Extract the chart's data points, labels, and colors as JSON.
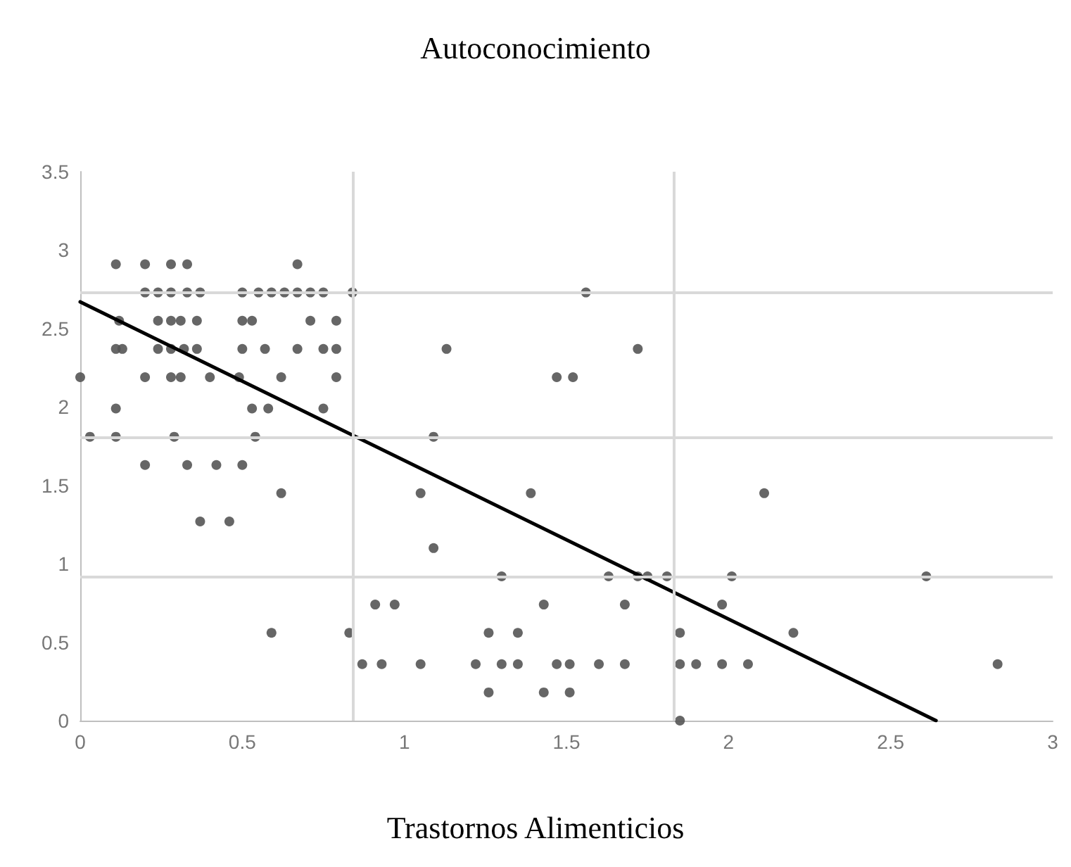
{
  "chart_data": {
    "type": "scatter",
    "title": "Autoconocimiento",
    "xlabel": "Trastornos Alimenticios",
    "xlim": [
      0,
      3
    ],
    "xticks": [
      0,
      0.5,
      1,
      1.5,
      2,
      2.5,
      3
    ],
    "ylim": [
      0,
      3.5
    ],
    "yticks": [
      0,
      0.5,
      1,
      1.5,
      2,
      2.5,
      3,
      3.5
    ],
    "grid": false,
    "marker": "circle",
    "ref_lines": [
      {
        "axis": "x",
        "value": 0.84,
        "color": "#d9d9d9"
      },
      {
        "axis": "x",
        "value": 1.83,
        "color": "#d9d9d9"
      },
      {
        "axis": "y",
        "value": 2.73,
        "color": "#d9d9d9"
      },
      {
        "axis": "y",
        "value": 1.81,
        "color": "#d9d9d9"
      },
      {
        "axis": "y",
        "value": 0.92,
        "color": "#d9d9d9"
      }
    ],
    "series": [
      {
        "color": "#555555",
        "x": [
          0.11,
          0.2,
          0.28,
          0.33,
          0.67,
          0.2,
          0.24,
          0.28,
          0.33,
          0.37,
          0.5,
          0.55,
          0.59,
          0.63,
          0.67,
          0.71,
          0.75,
          0.84,
          1.56,
          0.12,
          0.24,
          0.28,
          0.31,
          0.36,
          0.5,
          0.53,
          0.71,
          0.79,
          0.11,
          0.13,
          0.24,
          0.28,
          0.32,
          0.36,
          0.5,
          0.57,
          0.67,
          0.75,
          0.79,
          1.13,
          1.72,
          0,
          0.2,
          0.28,
          0.31,
          0.4,
          0.49,
          0.62,
          0.79,
          1.47,
          1.52,
          0.11,
          0.53,
          0.58,
          0.75,
          0.03,
          0.11,
          0.29,
          0.54,
          1.09,
          0.2,
          0.33,
          0.42,
          0.5,
          0.62,
          1.05,
          1.39,
          2.11,
          0.37,
          0.46,
          1.09,
          1.3,
          1.63,
          1.72,
          1.75,
          1.81,
          2.01,
          2.61,
          0.91,
          0.97,
          1.43,
          1.68,
          1.98,
          0.59,
          0.83,
          1.26,
          1.35,
          1.85,
          2.2,
          0.87,
          0.93,
          1.05,
          1.22,
          1.3,
          1.35,
          1.47,
          1.51,
          1.6,
          1.68,
          1.85,
          1.9,
          1.98,
          2.06,
          2.83,
          1.26,
          1.43,
          1.51,
          1.85
        ],
        "values": [
          2.91,
          2.91,
          2.91,
          2.91,
          2.91,
          2.73,
          2.73,
          2.73,
          2.73,
          2.73,
          2.73,
          2.73,
          2.73,
          2.73,
          2.73,
          2.73,
          2.73,
          2.73,
          2.73,
          2.55,
          2.55,
          2.55,
          2.55,
          2.55,
          2.55,
          2.55,
          2.55,
          2.55,
          2.37,
          2.37,
          2.37,
          2.37,
          2.37,
          2.37,
          2.37,
          2.37,
          2.37,
          2.37,
          2.37,
          2.37,
          2.37,
          2.19,
          2.19,
          2.19,
          2.19,
          2.19,
          2.19,
          2.19,
          2.19,
          2.19,
          2.19,
          1.99,
          1.99,
          1.99,
          1.99,
          1.81,
          1.81,
          1.81,
          1.81,
          1.81,
          1.63,
          1.63,
          1.63,
          1.63,
          1.45,
          1.45,
          1.45,
          1.45,
          1.27,
          1.27,
          1.1,
          0.92,
          0.92,
          0.92,
          0.92,
          0.92,
          0.92,
          0.92,
          0.74,
          0.74,
          0.74,
          0.74,
          0.74,
          0.56,
          0.56,
          0.56,
          0.56,
          0.56,
          0.56,
          0.36,
          0.36,
          0.36,
          0.36,
          0.36,
          0.36,
          0.36,
          0.36,
          0.36,
          0.36,
          0.36,
          0.36,
          0.36,
          0.36,
          0.36,
          0.18,
          0.18,
          0.18,
          0
        ]
      },
      {
        "type": "line",
        "marker": "none",
        "color": "#000000",
        "x": [
          0,
          2.64
        ],
        "values": [
          2.67,
          0
        ]
      }
    ]
  }
}
